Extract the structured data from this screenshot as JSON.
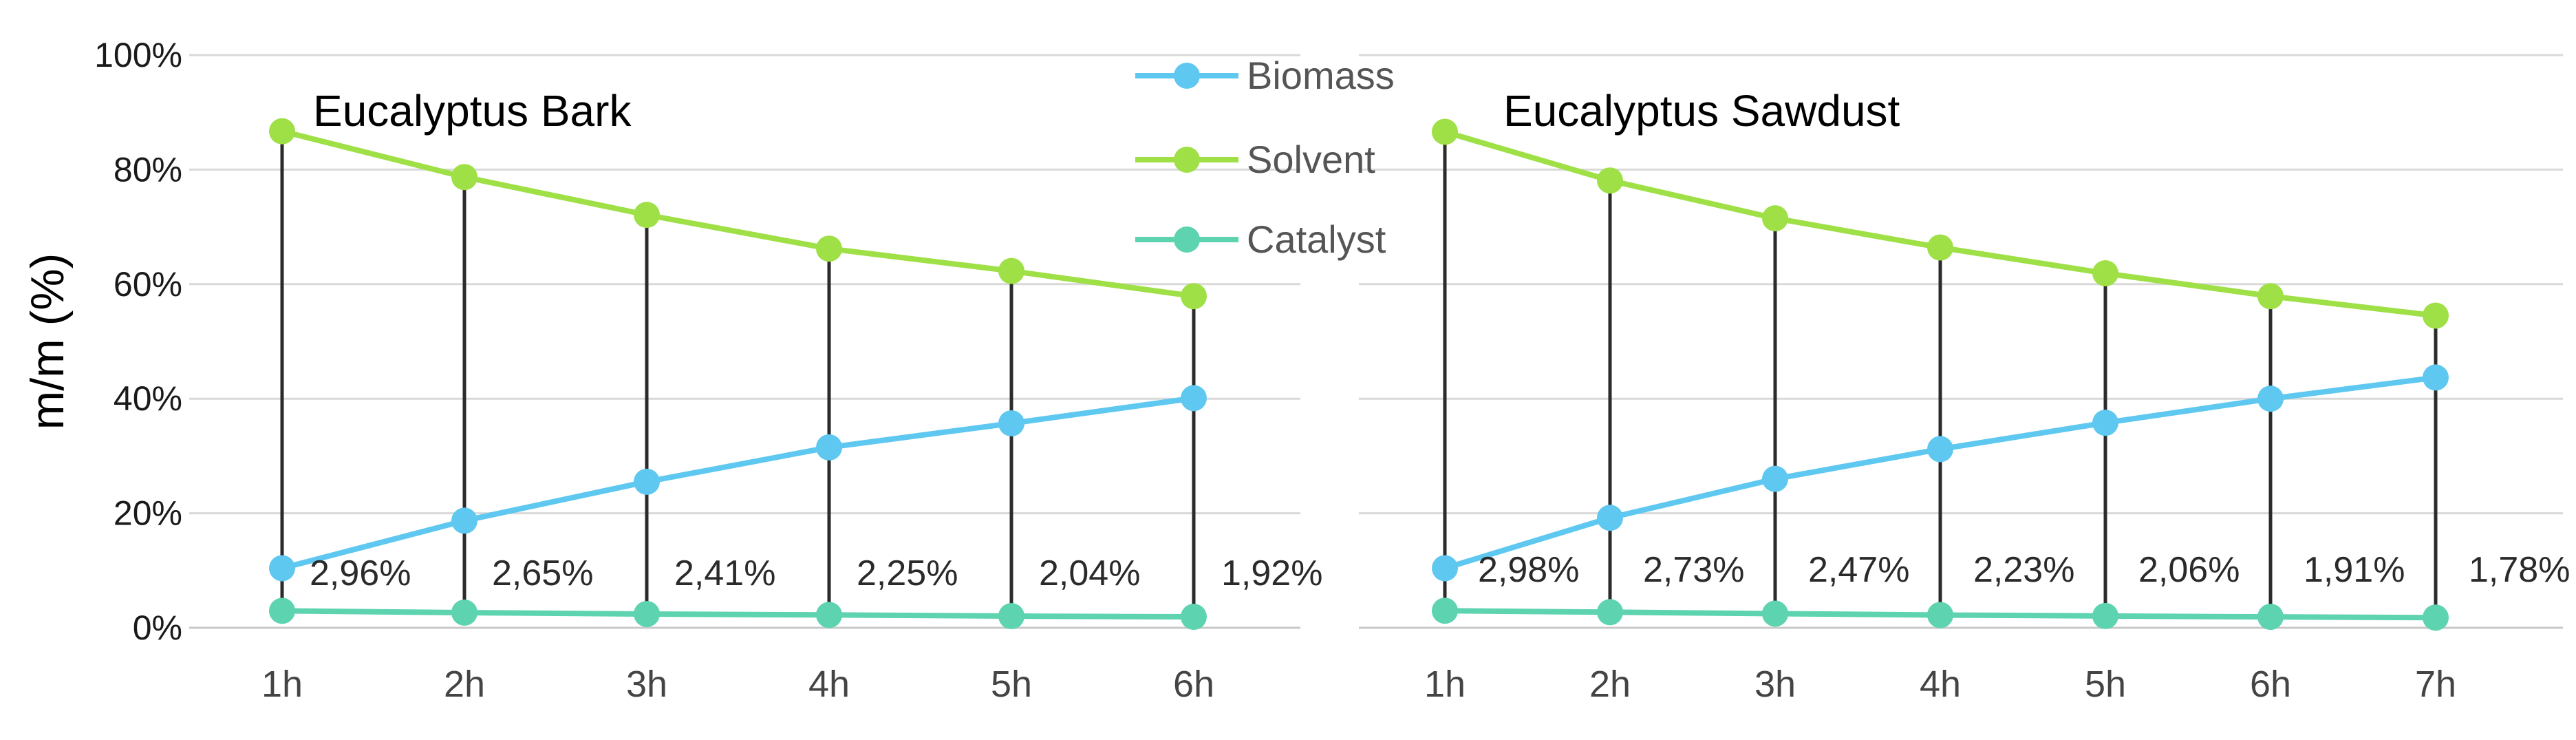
{
  "chart_data": [
    {
      "type": "line",
      "title": "Eucalyptus Bark",
      "ylabel": "m/m (%)",
      "ylim": [
        0,
        100
      ],
      "yticks": [
        "0%",
        "20%",
        "40%",
        "60%",
        "80%",
        "100%"
      ],
      "categories": [
        "1h",
        "2h",
        "3h",
        "4h",
        "5h",
        "6h"
      ],
      "series": [
        {
          "name": "Biomass",
          "color": "#5ec8f0",
          "values": [
            10.4,
            18.7,
            25.5,
            31.5,
            35.7,
            40.1
          ]
        },
        {
          "name": "Solvent",
          "color": "#9ee046",
          "values": [
            86.7,
            78.7,
            72.1,
            66.2,
            62.3,
            57.9
          ]
        },
        {
          "name": "Catalyst",
          "color": "#5dd3b0",
          "values": [
            2.96,
            2.65,
            2.41,
            2.25,
            2.04,
            1.92
          ]
        }
      ],
      "data_labels": [
        "2,96%",
        "2,65%",
        "2,41%",
        "2,25%",
        "2,04%",
        "1,92%"
      ],
      "drop_lines": true,
      "grid": "horizontal"
    },
    {
      "type": "line",
      "title": "Eucalyptus Sawdust",
      "ylim": [
        0,
        100
      ],
      "categories": [
        "1h",
        "2h",
        "3h",
        "4h",
        "5h",
        "6h",
        "7h"
      ],
      "series": [
        {
          "name": "Biomass",
          "color": "#5ec8f0",
          "values": [
            10.4,
            19.2,
            26.0,
            31.2,
            35.8,
            40.0,
            43.7
          ]
        },
        {
          "name": "Solvent",
          "color": "#9ee046",
          "values": [
            86.6,
            78.1,
            71.5,
            66.4,
            61.9,
            57.9,
            54.5
          ]
        },
        {
          "name": "Catalyst",
          "color": "#5dd3b0",
          "values": [
            2.98,
            2.73,
            2.47,
            2.23,
            2.06,
            1.91,
            1.78
          ]
        }
      ],
      "data_labels": [
        "2,98%",
        "2,73%",
        "2,47%",
        "2,23%",
        "2,06%",
        "1,91%",
        "1,78%"
      ],
      "drop_lines": true,
      "grid": "horizontal"
    }
  ],
  "legend": {
    "placement": "top-center",
    "items": [
      "Biomass",
      "Solvent",
      "Catalyst"
    ]
  }
}
